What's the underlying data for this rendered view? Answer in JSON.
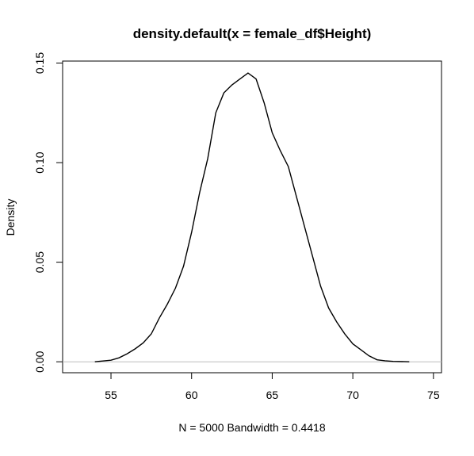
{
  "chart_data": {
    "type": "line",
    "title": "density.default(x = female_df$Height)",
    "xlabel": "N = 5000   Bandwidth = 0.4418",
    "ylabel": "Density",
    "xlim": [
      52.0,
      75.5
    ],
    "ylim": [
      -0.0055,
      0.151
    ],
    "x_ticks": [
      55,
      60,
      65,
      70,
      75
    ],
    "x_tick_labels": [
      "55",
      "60",
      "65",
      "70",
      "75"
    ],
    "y_ticks": [
      0.0,
      0.05,
      0.1,
      0.15
    ],
    "y_tick_labels": [
      "0.00",
      "0.05",
      "0.10",
      "0.15"
    ],
    "baseline": {
      "y": 0,
      "color": "#bebebe"
    },
    "grid": false,
    "legend": "none",
    "series": [
      {
        "color": "#000000",
        "x": [
          54.0,
          55.0,
          55.5,
          56.0,
          56.5,
          57.0,
          57.5,
          58.0,
          58.5,
          59.0,
          59.5,
          60.0,
          60.5,
          61.0,
          61.5,
          62.0,
          62.5,
          63.0,
          63.5,
          64.0,
          64.5,
          65.0,
          65.5,
          66.0,
          66.5,
          67.0,
          67.5,
          68.0,
          68.5,
          69.0,
          69.5,
          70.0,
          70.5,
          71.0,
          71.5,
          72.0,
          72.5,
          73.5
        ],
        "y": [
          0.0,
          0.0008,
          0.002,
          0.004,
          0.0065,
          0.0095,
          0.014,
          0.022,
          0.029,
          0.037,
          0.048,
          0.065,
          0.085,
          0.102,
          0.125,
          0.135,
          0.139,
          0.142,
          0.145,
          0.142,
          0.13,
          0.115,
          0.106,
          0.098,
          0.083,
          0.068,
          0.053,
          0.038,
          0.027,
          0.02,
          0.014,
          0.009,
          0.006,
          0.003,
          0.001,
          0.0005,
          0.0002,
          0.0
        ]
      }
    ]
  }
}
